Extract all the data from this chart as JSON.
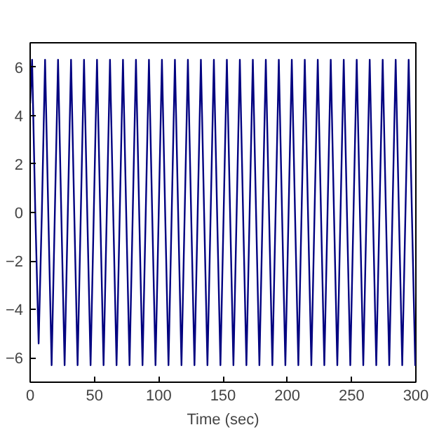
{
  "chart_data": {
    "type": "line",
    "xlabel": "Time (sec)",
    "x": [
      0,
      1.5,
      4.0,
      6.6,
      9.1,
      11.6,
      14.1,
      16.7,
      19.2,
      21.7,
      24.2,
      26.8,
      29.3,
      31.8,
      34.3,
      36.9,
      39.4,
      41.9,
      44.4,
      47.0,
      49.5,
      52.0,
      54.5,
      57.1,
      59.6,
      62.1,
      64.6,
      67.2,
      69.7,
      72.2,
      74.7,
      77.3,
      79.8,
      82.3,
      84.8,
      87.4,
      89.9,
      92.4,
      94.9,
      97.5,
      100.0,
      102.5,
      105.0,
      107.6,
      110.1,
      112.6,
      115.1,
      117.7,
      120.2,
      122.7,
      125.2,
      127.8,
      130.3,
      132.8,
      135.3,
      137.9,
      140.4,
      142.9,
      145.4,
      148.0,
      150.5,
      153.0,
      155.5,
      158.1,
      160.6,
      163.1,
      165.6,
      168.2,
      170.7,
      173.2,
      175.7,
      178.3,
      180.8,
      183.3,
      185.8,
      188.4,
      190.9,
      193.4,
      195.9,
      198.5,
      201.0,
      203.5,
      206.0,
      208.6,
      211.1,
      213.6,
      216.1,
      218.7,
      221.2,
      223.7,
      226.2,
      228.8,
      231.3,
      233.8,
      236.3,
      238.9,
      241.4,
      243.9,
      246.4,
      249.0,
      251.5,
      254.0,
      256.5,
      259.1,
      261.6,
      264.1,
      266.6,
      269.2,
      271.7,
      274.2,
      276.7,
      279.3,
      281.8,
      284.3,
      286.8,
      289.4,
      291.9,
      294.4,
      296.9,
      299.5,
      300
    ],
    "series": [
      {
        "color": "#000080",
        "values": [
          4.5,
          6.3,
          0,
          -5.4,
          0,
          6.3,
          0,
          -6.3,
          0,
          6.3,
          0,
          -6.3,
          0,
          6.3,
          0,
          -6.3,
          0,
          6.3,
          0,
          -6.3,
          0,
          6.3,
          0,
          -6.3,
          0,
          6.3,
          0,
          -6.3,
          0,
          6.3,
          0,
          -6.3,
          0,
          6.3,
          0,
          -6.3,
          0,
          6.3,
          0,
          -6.3,
          0,
          6.3,
          0,
          -6.3,
          0,
          6.3,
          0,
          -6.3,
          0,
          6.3,
          0,
          -6.3,
          0,
          6.3,
          0,
          -6.3,
          0,
          6.3,
          0,
          -6.3,
          0,
          6.3,
          0,
          -6.3,
          0,
          6.3,
          0,
          -6.3,
          0,
          6.3,
          0,
          -6.3,
          0,
          6.3,
          0,
          -6.3,
          0,
          6.3,
          0,
          -6.3,
          0,
          6.3,
          0,
          -6.3,
          0,
          6.3,
          0,
          -6.3,
          0,
          6.3,
          0,
          -6.3,
          0,
          6.3,
          0,
          -6.3,
          0,
          6.3,
          0,
          -6.3,
          0,
          6.3,
          0,
          -6.3,
          0,
          6.3,
          0,
          -6.3,
          0,
          6.3,
          0,
          -6.3,
          0,
          6.3,
          0,
          -6.3,
          0,
          6.3,
          0,
          -6.3,
          -6.2
        ]
      }
    ],
    "xlim": [
      0,
      300
    ],
    "ylim": [
      -7,
      7
    ],
    "xticks": [
      0,
      50,
      100,
      150,
      200,
      250,
      300
    ],
    "yticks": [
      -6,
      -4,
      -2,
      0,
      2,
      4,
      6
    ]
  }
}
